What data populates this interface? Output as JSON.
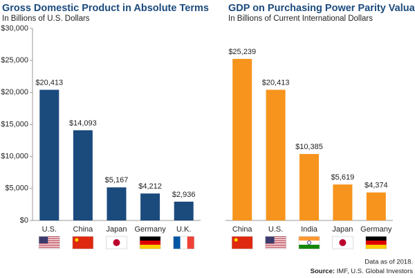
{
  "chart_data": [
    {
      "type": "bar",
      "title": "Gross Domestic Product in Absolute Terms",
      "subtitle": "In Billions of U.S. Dollars",
      "categories": [
        "U.S.",
        "China",
        "Japan",
        "Germany",
        "U.K."
      ],
      "values": [
        20413,
        14093,
        5167,
        4212,
        2936
      ],
      "value_labels": [
        "$20,413",
        "$14,093",
        "$5,167",
        "$4,212",
        "$2,936"
      ],
      "color": "#1b4a7d",
      "ylim": [
        0,
        30000
      ],
      "yticks": [
        {
          "value": 0,
          "label": "$0"
        },
        {
          "value": 5000,
          "label": "$5,000"
        },
        {
          "value": 10000,
          "label": "$10,000"
        },
        {
          "value": 15000,
          "label": "$15,000"
        },
        {
          "value": 20000,
          "label": "$20,000"
        },
        {
          "value": 25000,
          "label": "$25,000"
        },
        {
          "value": 30000,
          "label": "$30,000"
        }
      ]
    },
    {
      "type": "bar",
      "title": "GDP on Purchasing Power Parity Valuation",
      "subtitle": "In Billions of Current International Dollars",
      "categories": [
        "China",
        "U.S.",
        "India",
        "Japan",
        "Germany"
      ],
      "values": [
        25239,
        20413,
        10385,
        5619,
        4374
      ],
      "value_labels": [
        "$25,239",
        "$20,413",
        "$10,385",
        "$5,619",
        "$4,374"
      ],
      "color": "#f7941d",
      "ylim": [
        0,
        30000
      ]
    }
  ],
  "footer": {
    "note": "Data as of 2018.",
    "source_label": "Source:",
    "source": "IMF, U.S. Global Investors"
  }
}
